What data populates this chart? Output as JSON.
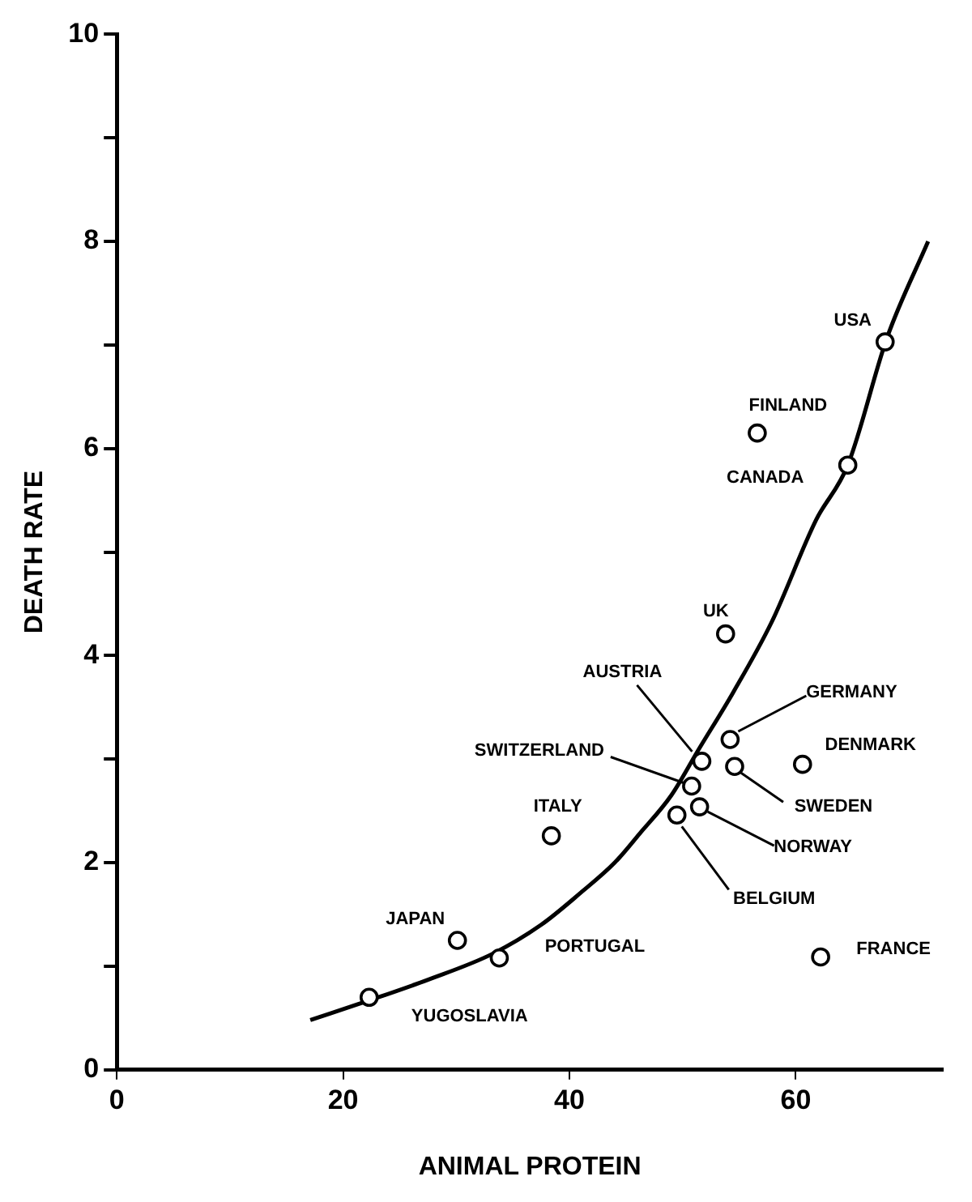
{
  "chart_data": {
    "type": "scatter",
    "xlabel": "ANIMAL PROTEIN",
    "ylabel": "DEATH RATE",
    "xlim": [
      0,
      73
    ],
    "xticks": [
      0,
      20,
      40,
      60
    ],
    "ylim": [
      0,
      10
    ],
    "yticks": [
      0,
      {
        "value": 1,
        "label": null
      },
      2,
      {
        "value": 3,
        "label": null
      },
      4,
      {
        "value": 5,
        "label": null
      },
      6,
      {
        "value": 7,
        "label": null
      },
      8,
      {
        "value": 9,
        "label": null
      },
      10
    ],
    "grid": false,
    "legend": false,
    "marker": "circle",
    "series": [
      {
        "color": "#000000",
        "x": [
          67.9,
          56.6,
          64.6,
          53.8,
          51.7,
          54.2,
          60.6,
          54.6,
          50.8,
          51.5,
          49.5,
          38.4,
          30.1,
          33.8,
          62.2,
          22.3
        ],
        "values": [
          7.03,
          6.15,
          5.84,
          4.21,
          2.98,
          3.19,
          2.95,
          2.93,
          2.74,
          2.54,
          2.46,
          2.26,
          1.25,
          1.08,
          1.09,
          0.7
        ]
      },
      {
        "type": "line",
        "color": "#000000",
        "marker": "none",
        "line_style": "solid",
        "x": [
          17.1,
          22.3,
          27.5,
          33.2,
          37.5,
          41.0,
          44.0,
          46.2,
          49.0,
          51.4,
          54.5,
          57.9,
          61.8,
          64.6,
          68.1,
          71.7
        ],
        "values": [
          0.48,
          0.67,
          0.87,
          1.12,
          1.4,
          1.71,
          2.0,
          2.28,
          2.65,
          3.09,
          3.65,
          4.33,
          5.31,
          5.84,
          7.08,
          8.0
        ]
      }
    ],
    "annotations": [
      {
        "text": "USA",
        "x": 67.9,
        "y": 7.03
      },
      {
        "text": "FINLAND",
        "x": 56.6,
        "y": 6.15
      },
      {
        "text": "CANADA",
        "x": 64.6,
        "y": 5.84
      },
      {
        "text": "UK",
        "x": 53.8,
        "y": 4.21
      },
      {
        "text": "AUSTRIA",
        "x": 51.7,
        "y": 2.98
      },
      {
        "text": "GERMANY",
        "x": 54.2,
        "y": 3.19
      },
      {
        "text": "DENMARK",
        "x": 60.6,
        "y": 2.95
      },
      {
        "text": "SWEDEN",
        "x": 54.6,
        "y": 2.93
      },
      {
        "text": "SWITZERLAND",
        "x": 50.8,
        "y": 2.74
      },
      {
        "text": "NORWAY",
        "x": 51.5,
        "y": 2.54
      },
      {
        "text": "BELGIUM",
        "x": 49.5,
        "y": 2.46
      },
      {
        "text": "ITALY",
        "x": 38.4,
        "y": 2.26
      },
      {
        "text": "JAPAN",
        "x": 30.1,
        "y": 1.25
      },
      {
        "text": "PORTUGAL",
        "x": 33.8,
        "y": 1.08
      },
      {
        "text": "FRANCE",
        "x": 62.2,
        "y": 1.09
      },
      {
        "text": "YUGOSLAVIA",
        "x": 22.3,
        "y": 0.7
      }
    ]
  }
}
